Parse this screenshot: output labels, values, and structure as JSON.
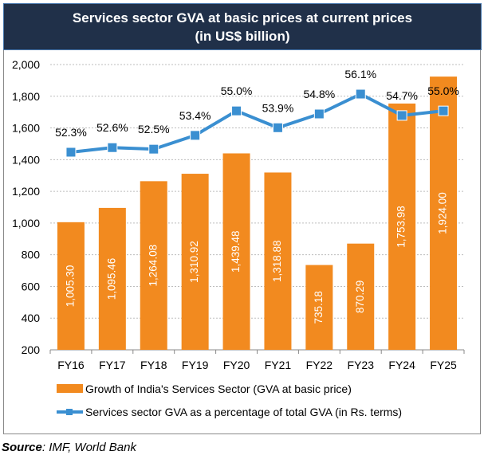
{
  "chart_data": {
    "type": "bar+line",
    "title": "Services sector GVA at basic prices at current prices",
    "subtitle": "(in US$ billion)",
    "categories": [
      "FY16",
      "FY17",
      "FY18",
      "FY19",
      "FY20",
      "FY21",
      "FY22",
      "FY23",
      "FY24",
      "FY25"
    ],
    "ylim": [
      200,
      2000
    ],
    "yticks": [
      "200",
      "400",
      "600",
      "800",
      "1,000",
      "1,200",
      "1,400",
      "1,600",
      "1,800",
      "2,000"
    ],
    "grid": true,
    "legend_position": "bottom",
    "series": [
      {
        "name": "Growth of India's Services Sector (GVA at basic price)",
        "type": "bar",
        "color": "#f28a1f",
        "values": [
          1005.3,
          1095.46,
          1264.08,
          1310.92,
          1439.48,
          1318.88,
          735.18,
          870.29,
          1753.98,
          1924.0
        ],
        "labels": [
          "1,005.30",
          "1,095.46",
          "1,264.08",
          "1,310.92",
          "1,439.48",
          "1,318.88",
          "735.18",
          "870.29",
          "1,753.98",
          "1,924.00"
        ]
      },
      {
        "name": "Services sector GVA as a percentage of total GVA (in Rs. terms)",
        "type": "line",
        "axis": "secondary-hidden",
        "color": "#3a8fd1",
        "values": [
          52.3,
          52.6,
          52.5,
          53.4,
          55.0,
          53.9,
          54.8,
          56.1,
          54.7,
          55.0
        ],
        "labels": [
          "52.3%",
          "52.6%",
          "52.5%",
          "53.4%",
          "55.0%",
          "53.9%",
          "54.8%",
          "56.1%",
          "54.7%",
          "55.0%"
        ]
      }
    ]
  },
  "source": {
    "label": "Source",
    "text": ": IMF, World Bank"
  }
}
